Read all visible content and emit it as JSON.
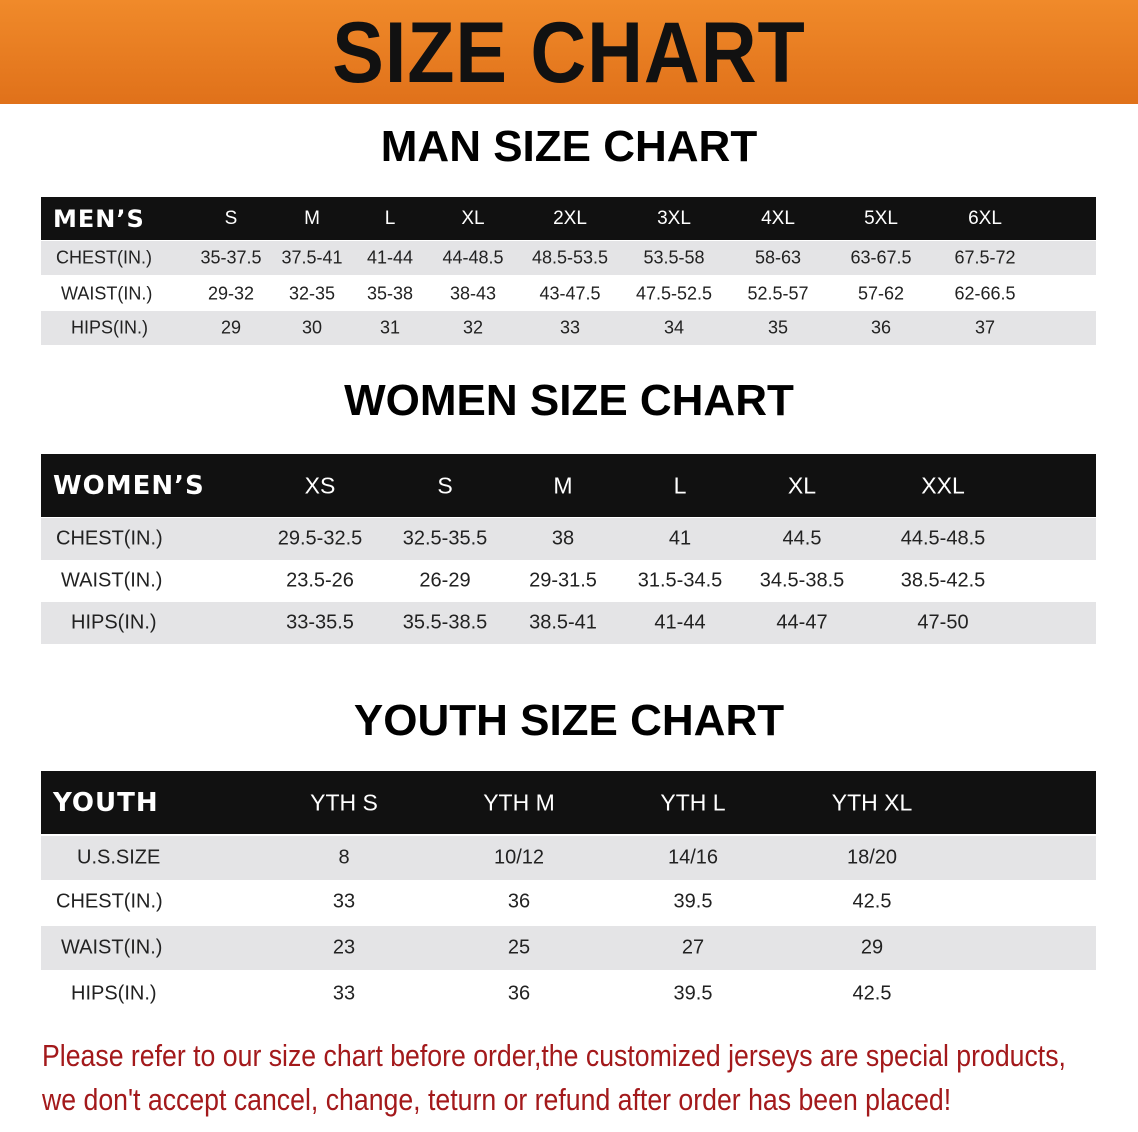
{
  "banner_title": "SIZE CHART",
  "colors": {
    "banner": "#e87a20",
    "header_row": "#111111",
    "stripe": "#e4e4e6",
    "note_text": "#a3191b"
  },
  "men": {
    "title": "MAN SIZE CHART",
    "header": "MEN’S",
    "sizes": [
      "S",
      "M",
      "L",
      "XL",
      "2XL",
      "3XL",
      "4XL",
      "5XL",
      "6XL"
    ],
    "rows": [
      {
        "label": "CHEST(IN.)",
        "values": [
          "35-37.5",
          "37.5-41",
          "41-44",
          "44-48.5",
          "48.5-53.5",
          "53.5-58",
          "58-63",
          "63-67.5",
          "67.5-72"
        ]
      },
      {
        "label": "WAIST(IN.)",
        "values": [
          "29-32",
          "32-35",
          "35-38",
          "38-43",
          "43-47.5",
          "47.5-52.5",
          "52.5-57",
          "57-62",
          "62-66.5"
        ]
      },
      {
        "label": "HIPS(IN.)",
        "values": [
          "29",
          "30",
          "31",
          "32",
          "33",
          "34",
          "35",
          "36",
          "37"
        ]
      }
    ]
  },
  "women": {
    "title": "WOMEN SIZE CHART",
    "header": "WOMEN’S",
    "sizes": [
      "XS",
      "S",
      "M",
      "L",
      "XL",
      "XXL"
    ],
    "rows": [
      {
        "label": "CHEST(IN.)",
        "values": [
          "29.5-32.5",
          "32.5-35.5",
          "38",
          "41",
          "44.5",
          "44.5-48.5"
        ]
      },
      {
        "label": "WAIST(IN.)",
        "values": [
          "23.5-26",
          "26-29",
          "29-31.5",
          "31.5-34.5",
          "34.5-38.5",
          "38.5-42.5"
        ]
      },
      {
        "label": "HIPS(IN.)",
        "values": [
          "33-35.5",
          "35.5-38.5",
          "38.5-41",
          "41-44",
          "44-47",
          "47-50"
        ]
      }
    ]
  },
  "youth": {
    "title": "YOUTH SIZE CHART",
    "header": "YOUTH",
    "sizes": [
      "YTH S",
      "YTH M",
      "YTH L",
      "YTH XL"
    ],
    "rows": [
      {
        "label": "U.S.SIZE",
        "values": [
          "8",
          "10/12",
          "14/16",
          "18/20"
        ]
      },
      {
        "label": "CHEST(IN.)",
        "values": [
          "33",
          "36",
          "39.5",
          "42.5"
        ]
      },
      {
        "label": "WAIST(IN.)",
        "values": [
          "23",
          "25",
          "27",
          "29"
        ]
      },
      {
        "label": "HIPS(IN.)",
        "values": [
          "33",
          "36",
          "39.5",
          "42.5"
        ]
      }
    ]
  },
  "notes": [
    "Please refer to our size chart before order,the customized jerseys are special products,",
    "we don't accept cancel, change, teturn or refund after order has been placed!"
  ]
}
